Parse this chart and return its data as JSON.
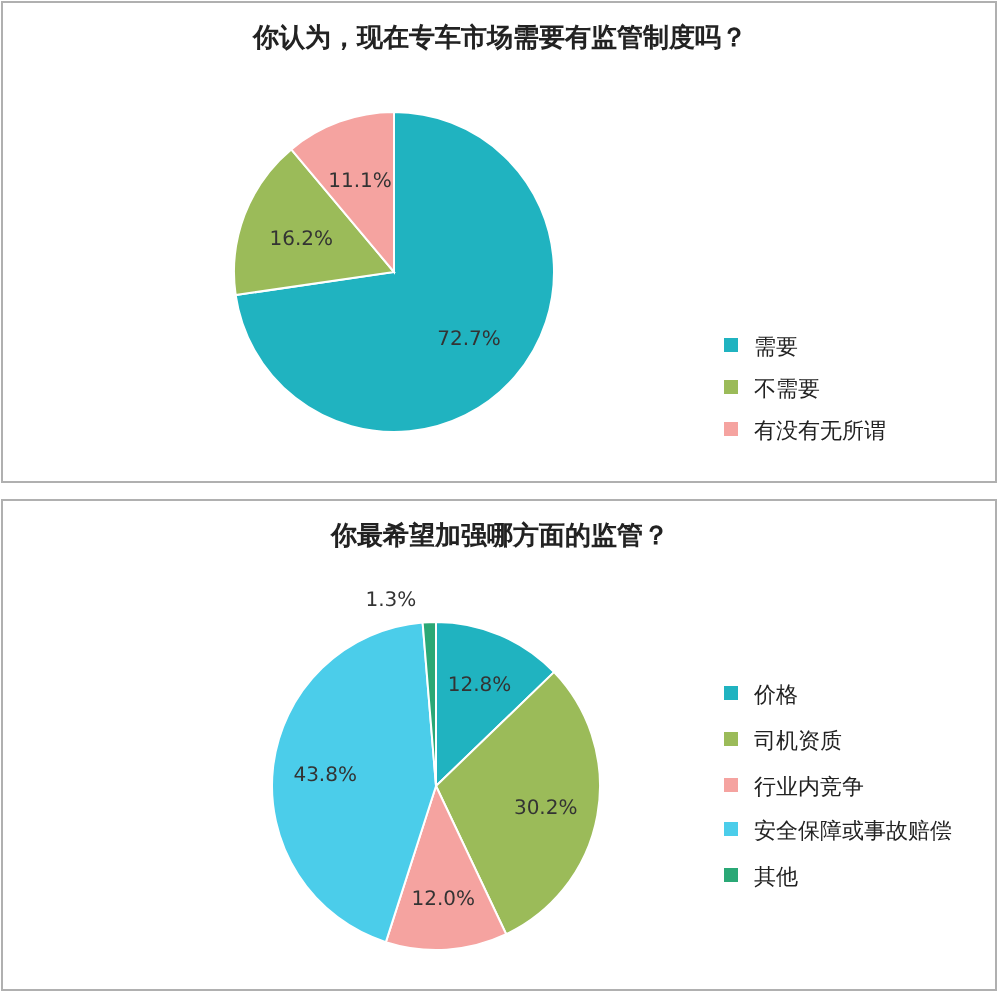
{
  "chart_data": [
    {
      "type": "pie",
      "title": "你认为，现在专车市场需要有监管制度吗？",
      "categories": [
        "需要",
        "不需要",
        "有没有无所谓"
      ],
      "values": [
        72.7,
        16.2,
        11.1
      ],
      "colors": [
        "#20b3c0",
        "#9bbb59",
        "#f5a3a0"
      ],
      "value_labels": [
        "72.7%",
        "16.2%",
        "11.1%"
      ],
      "legend": "right"
    },
    {
      "type": "pie",
      "title": "你最希望加强哪方面的监管？",
      "categories": [
        "价格",
        "司机资质",
        "行业内竞争",
        "安全保障或事故赔偿",
        "其他"
      ],
      "values": [
        12.8,
        30.2,
        12.0,
        43.8,
        1.3
      ],
      "colors": [
        "#20b3c0",
        "#9bbb59",
        "#f5a3a0",
        "#4bcdea",
        "#2aa876"
      ],
      "value_labels": [
        "12.8%",
        "30.2%",
        "12.0%",
        "43.8%",
        "1.3%"
      ],
      "legend": "right"
    }
  ]
}
